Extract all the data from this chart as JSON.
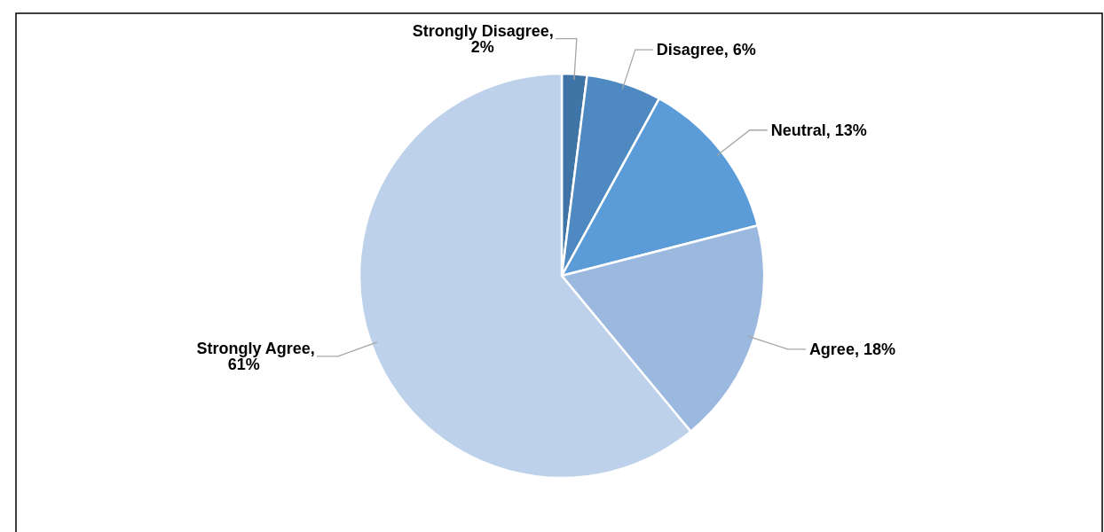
{
  "chart_data": {
    "type": "pie",
    "categories": [
      "Strongly Disagree",
      "Disagree",
      "Neutral",
      "Agree",
      "Strongly Agree"
    ],
    "values": [
      2,
      6,
      13,
      18,
      61
    ],
    "colors": [
      "#3f74a6",
      "#4e89c1",
      "#5b9bd8",
      "#9bb8df",
      "#bdd1ea"
    ],
    "value_labels": [
      ", 2%",
      ", 6%",
      ", 13%",
      ", 18%",
      ", 61%"
    ]
  }
}
